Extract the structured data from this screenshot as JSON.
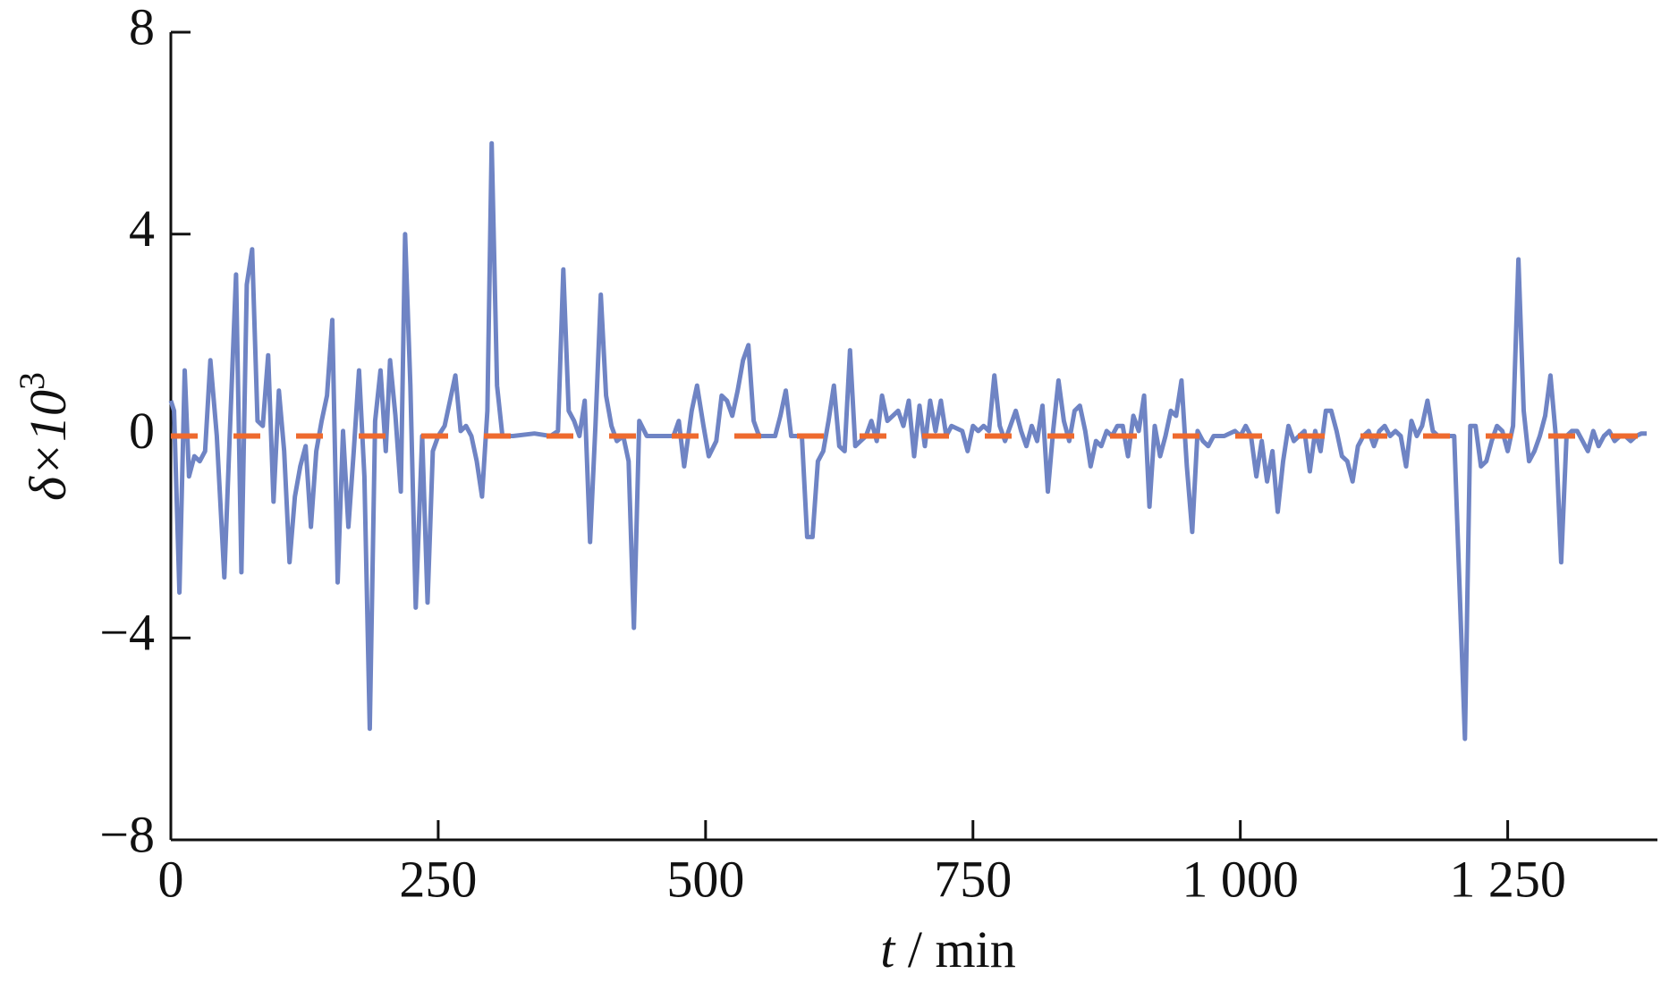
{
  "chart_data": {
    "type": "line",
    "xlabel": {
      "italic": "t",
      "rest": " / min"
    },
    "ylabel": {
      "base": "δ×10",
      "sup": "3"
    },
    "xlim": [
      0,
      1390
    ],
    "ylim": [
      -8,
      8
    ],
    "xticks": [
      0,
      250,
      500,
      750,
      {
        "value": 1000,
        "label": "1 000"
      },
      {
        "value": 1250,
        "label": "1 250"
      }
    ],
    "yticks": [
      {
        "value": -8,
        "label": "−8"
      },
      {
        "value": -4,
        "label": "−4"
      },
      0,
      4,
      8
    ],
    "series": [
      {
        "color": "#6f84c4",
        "linestyle": "solid",
        "x": [
          0,
          3,
          8,
          13,
          17,
          22,
          27,
          32,
          37,
          43,
          50,
          55,
          61,
          66,
          71,
          76,
          81,
          86,
          91,
          96,
          101,
          106,
          111,
          116,
          121,
          126,
          131,
          136,
          141,
          146,
          151,
          156,
          161,
          166,
          171,
          176,
          181,
          186,
          191,
          196,
          201,
          205,
          210,
          215,
          219,
          224,
          229,
          235,
          240,
          245,
          250,
          256,
          261,
          266,
          271,
          276,
          281,
          286,
          291,
          296,
          300,
          305,
          310,
          320,
          340,
          355,
          362,
          367,
          372,
          377,
          382,
          387,
          392,
          397,
          402,
          407,
          412,
          417,
          423,
          428,
          433,
          438,
          445,
          460,
          470,
          475,
          480,
          487,
          492,
          498,
          503,
          510,
          515,
          520,
          525,
          530,
          535,
          540,
          545,
          550,
          555,
          560,
          565,
          570,
          575,
          580,
          590,
          595,
          600,
          605,
          610,
          615,
          620,
          625,
          630,
          635,
          640,
          645,
          650,
          655,
          660,
          665,
          670,
          675,
          680,
          685,
          690,
          695,
          700,
          705,
          710,
          715,
          720,
          725,
          730,
          740,
          745,
          750,
          755,
          760,
          765,
          770,
          775,
          780,
          785,
          790,
          795,
          800,
          805,
          810,
          815,
          820,
          825,
          830,
          835,
          840,
          845,
          850,
          855,
          860,
          865,
          870,
          875,
          880,
          885,
          890,
          895,
          900,
          905,
          910,
          915,
          920,
          925,
          930,
          935,
          940,
          945,
          950,
          955,
          960,
          965,
          970,
          975,
          985,
          995,
          1000,
          1005,
          1010,
          1015,
          1020,
          1025,
          1030,
          1035,
          1040,
          1045,
          1050,
          1055,
          1060,
          1065,
          1070,
          1075,
          1080,
          1085,
          1090,
          1095,
          1100,
          1105,
          1110,
          1115,
          1120,
          1125,
          1130,
          1135,
          1140,
          1145,
          1150,
          1155,
          1160,
          1165,
          1170,
          1175,
          1180,
          1185,
          1190,
          1200,
          1210,
          1215,
          1220,
          1225,
          1230,
          1235,
          1240,
          1245,
          1250,
          1255,
          1260,
          1265,
          1270,
          1275,
          1280,
          1285,
          1290,
          1295,
          1300,
          1305,
          1310,
          1315,
          1320,
          1325,
          1330,
          1335,
          1340,
          1345,
          1350,
          1355,
          1360,
          1365,
          1370,
          1375,
          1380
        ],
        "values": [
          0.7,
          0.5,
          -3.1,
          1.3,
          -0.8,
          -0.4,
          -0.5,
          -0.3,
          1.5,
          0,
          -2.8,
          0,
          3.2,
          -2.7,
          3.0,
          3.7,
          0.3,
          0.2,
          1.6,
          -1.3,
          0.9,
          -0.3,
          -2.5,
          -1.2,
          -0.6,
          -0.2,
          -1.8,
          -0.3,
          0.3,
          0.8,
          2.3,
          -2.9,
          0.1,
          -1.8,
          -0.3,
          1.3,
          -0.8,
          -5.8,
          0.3,
          1.3,
          -0.3,
          1.5,
          0.4,
          -1.1,
          4.0,
          1.0,
          -3.4,
          0,
          -3.3,
          -0.3,
          0,
          0.2,
          0.7,
          1.2,
          0.1,
          0.2,
          0,
          -0.5,
          -1.2,
          0.5,
          5.8,
          1.0,
          0,
          0,
          0.05,
          0,
          0.1,
          3.3,
          0.5,
          0.3,
          0,
          0.7,
          -2.1,
          0.2,
          2.8,
          0.8,
          0.2,
          -0.1,
          0,
          -0.5,
          -3.8,
          0.3,
          0,
          0,
          0,
          0.3,
          -0.6,
          0.5,
          1.0,
          0.2,
          -0.4,
          -0.1,
          0.8,
          0.7,
          0.4,
          0.9,
          1.5,
          1.8,
          0.3,
          0,
          0,
          0,
          0,
          0.4,
          0.9,
          0,
          0,
          -2.0,
          -2.0,
          -0.5,
          -0.3,
          0.3,
          1.0,
          -0.2,
          -0.3,
          1.7,
          -0.2,
          -0.1,
          0,
          0.3,
          -0.1,
          0.8,
          0.3,
          0.4,
          0.5,
          0.2,
          0.7,
          -0.4,
          0.6,
          -0.2,
          0.7,
          0.1,
          0.7,
          0,
          0.2,
          0.1,
          -0.3,
          0.2,
          0.1,
          0.2,
          0.1,
          1.2,
          0.2,
          -0.1,
          0.2,
          0.5,
          0.1,
          -0.2,
          0.2,
          -0.1,
          0.6,
          -1.1,
          0.1,
          1.1,
          0.3,
          -0.1,
          0.5,
          0.6,
          0.1,
          -0.6,
          -0.1,
          -0.2,
          0.1,
          0,
          0.2,
          0.2,
          -0.4,
          0.4,
          0.1,
          0.8,
          -1.4,
          0.2,
          -0.4,
          0,
          0.5,
          0.4,
          1.1,
          -0.6,
          -1.9,
          0.1,
          -0.1,
          -0.2,
          0,
          0,
          0.1,
          0,
          0.2,
          0,
          -0.8,
          -0.1,
          -0.9,
          -0.3,
          -1.5,
          -0.5,
          0.2,
          -0.1,
          0,
          0.1,
          -0.7,
          0.1,
          -0.3,
          0.5,
          0.5,
          0.1,
          -0.4,
          -0.5,
          -0.9,
          -0.2,
          0,
          0.1,
          -0.2,
          0.1,
          0.2,
          0,
          0.1,
          0,
          -0.6,
          0.3,
          0,
          0.2,
          0.7,
          0.1,
          0,
          0,
          0,
          -6.0,
          0.2,
          0.2,
          -0.6,
          -0.5,
          -0.1,
          0.2,
          0.1,
          -0.3,
          0.2,
          3.5,
          0.5,
          -0.5,
          -0.3,
          0,
          0.4,
          1.2,
          0,
          -2.5,
          0,
          0.1,
          0.1,
          -0.1,
          -0.3,
          0.1,
          -0.2,
          0,
          0.1,
          -0.1,
          0,
          0,
          -0.1,
          0,
          0.05,
          0.05
        ]
      },
      {
        "color": "#ee6a2e",
        "linestyle": "dashed",
        "x": [
          0,
          1390
        ],
        "values": [
          0,
          0
        ]
      }
    ]
  }
}
